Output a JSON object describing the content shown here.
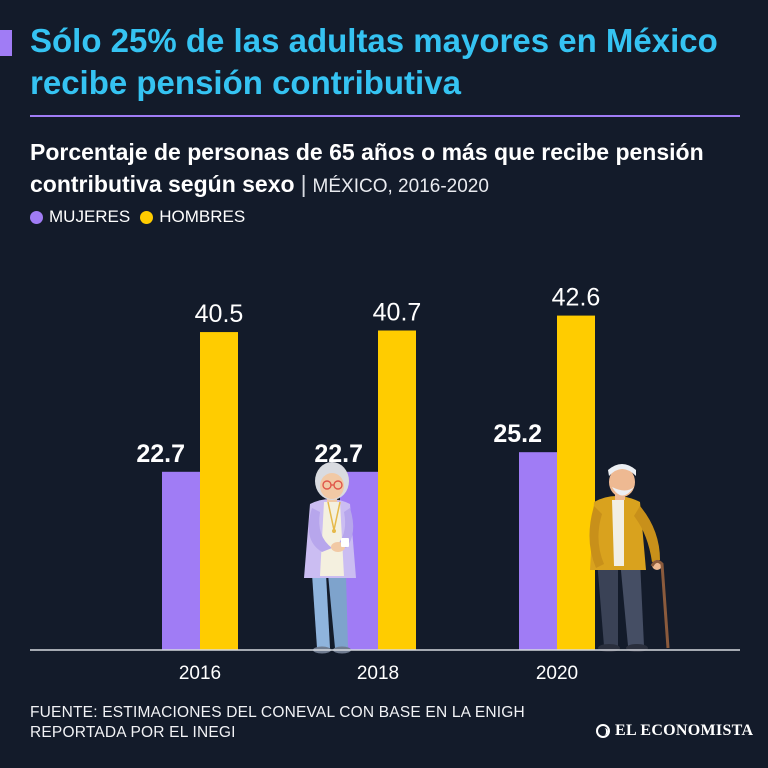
{
  "header": {
    "title": "Sólo 25% de las adultas mayores en México recibe pensión contributiva",
    "subtitle_strong": "Porcentaje de personas de 65 años o más que recibe pensión contributiva según sexo",
    "subtitle_separator": "|",
    "subtitle_scope": "MÉXICO, 2016-2020"
  },
  "legend": {
    "items": [
      {
        "label": "MUJERES",
        "color": "#a07cf5"
      },
      {
        "label": "HOMBRES",
        "color": "#ffcc00"
      }
    ]
  },
  "chart_data": {
    "type": "bar",
    "title": "Porcentaje de personas de 65 años o más que recibe pensión contributiva según sexo",
    "categories": [
      "2016",
      "2018",
      "2020"
    ],
    "series": [
      {
        "name": "MUJERES",
        "color": "#a07cf5",
        "values": [
          22.7,
          22.7,
          25.2
        ],
        "labels": [
          "22.7",
          "22.7",
          "25.2"
        ]
      },
      {
        "name": "HOMBRES",
        "color": "#ffcc00",
        "values": [
          40.5,
          40.7,
          42.6
        ],
        "labels": [
          "40.5",
          "40.7",
          "42.6"
        ]
      }
    ],
    "xlabel": "",
    "ylabel": "",
    "ylim": [
      0,
      45
    ],
    "grid": false,
    "legend": "top-left"
  },
  "footer": {
    "source": "FUENTE: ESTIMACIONES DEL CONEVAL CON BASE EN LA ENIGH REPORTADA POR EL INEGI",
    "brand": "EL ECONOMISTA"
  },
  "illustrations": {
    "woman_icon": "elderly-woman-illustration",
    "man_icon": "elderly-man-with-cane-illustration"
  }
}
